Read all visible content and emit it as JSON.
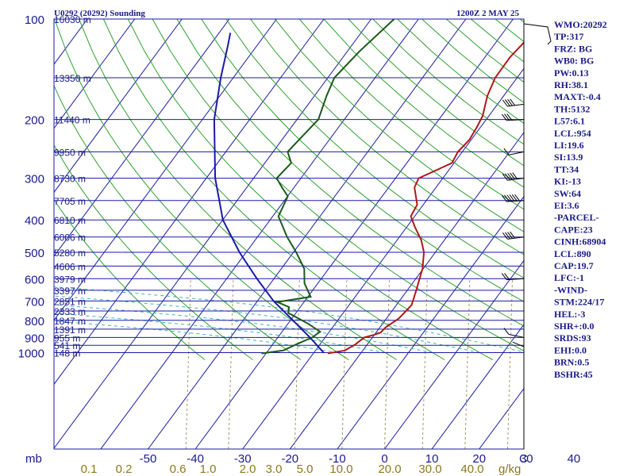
{
  "header": {
    "station": "U0292 (20292) Sounding",
    "time": "1200Z  2 MAY 25"
  },
  "chart_data": {
    "type": "skew-t log-p sounding",
    "x_axis_label": "C",
    "pressure_unit_label": "mb",
    "mixing_ratio_unit_label": "g/kg",
    "pressure_levels": [
      100,
      200,
      300,
      400,
      500,
      600,
      700,
      800,
      900,
      1000
    ],
    "height_levels": [
      {
        "p": 100,
        "label": "16030 m"
      },
      {
        "p": 150,
        "label": "13350 m"
      },
      {
        "p": 200,
        "label": "11440 m"
      },
      {
        "p": 250,
        "label": "9950 m"
      },
      {
        "p": 300,
        "label": "8730 m"
      },
      {
        "p": 350,
        "label": "7705 m"
      },
      {
        "p": 400,
        "label": "6810 m"
      },
      {
        "p": 450,
        "label": "6006 m"
      },
      {
        "p": 500,
        "label": "5280 m"
      },
      {
        "p": 550,
        "label": "4606 m"
      },
      {
        "p": 600,
        "label": "3979 m"
      },
      {
        "p": 650,
        "label": "3397 m"
      },
      {
        "p": 700,
        "label": "2851 m"
      },
      {
        "p": 750,
        "label": "2333 m"
      },
      {
        "p": 800,
        "label": "1847 m"
      },
      {
        "p": 850,
        "label": "1391 m"
      },
      {
        "p": 900,
        "label": "955 m"
      },
      {
        "p": 950,
        "label": "541 m"
      },
      {
        "p": 1000,
        "label": "148 m"
      }
    ],
    "temperature_ticks": [
      -50,
      -40,
      -30,
      -20,
      -10,
      0,
      10,
      20,
      30,
      40
    ],
    "mixing_ratio_labels": [
      "0.1",
      "0.2",
      "0.6",
      "1.0",
      "2.0",
      "3.0",
      "5.0",
      "10.0",
      "20.0",
      "30.0",
      "40.0"
    ],
    "series": [
      {
        "color": "#b01818",
        "points": [
          {
            "p": 1005,
            "t": -12
          },
          {
            "p": 985,
            "t": -9
          },
          {
            "p": 945,
            "t": -8
          },
          {
            "p": 900,
            "t": -7.5
          },
          {
            "p": 885,
            "t": -6
          },
          {
            "p": 870,
            "t": -5
          },
          {
            "p": 840,
            "t": -5
          },
          {
            "p": 790,
            "t": -4
          },
          {
            "p": 720,
            "t": -4
          },
          {
            "p": 650,
            "t": -6
          },
          {
            "p": 560,
            "t": -9
          },
          {
            "p": 500,
            "t": -12
          },
          {
            "p": 460,
            "t": -15
          },
          {
            "p": 420,
            "t": -19
          },
          {
            "p": 390,
            "t": -22
          },
          {
            "p": 360,
            "t": -23
          },
          {
            "p": 320,
            "t": -27
          },
          {
            "p": 300,
            "t": -28
          },
          {
            "p": 270,
            "t": -24
          },
          {
            "p": 250,
            "t": -25
          },
          {
            "p": 230,
            "t": -25
          },
          {
            "p": 210,
            "t": -26
          },
          {
            "p": 195,
            "t": -27
          },
          {
            "p": 170,
            "t": -30
          },
          {
            "p": 150,
            "t": -32
          },
          {
            "p": 130,
            "t": -33
          },
          {
            "p": 115,
            "t": -33
          },
          {
            "p": 100,
            "t": -35
          },
          {
            "p": 96,
            "t": -36
          }
        ]
      },
      {
        "color": "#1a5a1a",
        "points": [
          {
            "p": 1005,
            "t": -26
          },
          {
            "p": 985,
            "t": -22
          },
          {
            "p": 945,
            "t": -20.5
          },
          {
            "p": 900,
            "t": -18.5
          },
          {
            "p": 865,
            "t": -18
          },
          {
            "p": 820,
            "t": -22
          },
          {
            "p": 760,
            "t": -28.5
          },
          {
            "p": 730,
            "t": -29.5
          },
          {
            "p": 705,
            "t": -33
          },
          {
            "p": 680,
            "t": -27
          },
          {
            "p": 620,
            "t": -31
          },
          {
            "p": 560,
            "t": -34
          },
          {
            "p": 500,
            "t": -39
          },
          {
            "p": 450,
            "t": -44
          },
          {
            "p": 390,
            "t": -50
          },
          {
            "p": 340,
            "t": -52
          },
          {
            "p": 320,
            "t": -55
          },
          {
            "p": 300,
            "t": -58
          },
          {
            "p": 270,
            "t": -58
          },
          {
            "p": 250,
            "t": -61
          },
          {
            "p": 230,
            "t": -61
          },
          {
            "p": 200,
            "t": -61
          },
          {
            "p": 170,
            "t": -64
          },
          {
            "p": 150,
            "t": -66
          },
          {
            "p": 125,
            "t": -66
          },
          {
            "p": 96,
            "t": -65
          }
        ]
      },
      {
        "color": "#1a1aa8",
        "points": [
          {
            "p": 1000,
            "t": -13
          },
          {
            "p": 900,
            "t": -19
          },
          {
            "p": 800,
            "t": -26
          },
          {
            "p": 700,
            "t": -34
          },
          {
            "p": 600,
            "t": -42
          },
          {
            "p": 500,
            "t": -51
          },
          {
            "p": 400,
            "t": -61
          },
          {
            "p": 300,
            "t": -71
          },
          {
            "p": 200,
            "t": -83
          },
          {
            "p": 150,
            "t": -90
          },
          {
            "p": 120,
            "t": -95
          },
          {
            "p": 110,
            "t": -97
          }
        ]
      }
    ],
    "wind_barbs": [
      {
        "p": 180,
        "dir": 250,
        "kt": 40
      },
      {
        "p": 200,
        "dir": 260,
        "kt": 30
      },
      {
        "p": 250,
        "dir": 240,
        "kt": 15
      },
      {
        "p": 300,
        "dir": 250,
        "kt": 55
      },
      {
        "p": 350,
        "dir": 260,
        "kt": 60
      },
      {
        "p": 450,
        "dir": 250,
        "kt": 45
      },
      {
        "p": 600,
        "dir": 260,
        "kt": 20
      },
      {
        "p": 900,
        "dir": 300,
        "kt": 10
      },
      {
        "p": 960,
        "dir": 320,
        "kt": 5
      }
    ],
    "indices": [
      "WMO:20292",
      "TP:317",
      "FRZ: BG",
      "WB0: BG",
      "PW:0.13",
      "RH:38.1",
      "MAXT:-0.4",
      "TH:5132",
      "L57:6.1",
      "LCL:954",
      "LI:19.6",
      "SI:13.9",
      "TT:34",
      "KI:-13",
      "SW:64",
      "EI:3.6",
      "-PARCEL-",
      "CAPE:23",
      "CINH:68904",
      "LCL:890",
      "CAP:19.7",
      "LFC:-1",
      "-WIND-",
      "STM:224/17",
      "HEL:-3",
      "SHR+:0.0",
      "SRDS:93",
      "EHI:0.0",
      "BRN:0.5",
      "BSHR:45"
    ],
    "colors": {
      "isobar": "#1a1aa8",
      "isotherm": "#1a1aa8",
      "dry_adiabat": "#2fa02f",
      "moist_adiabat": "#3ab0c8",
      "mixing_ratio": "#a09868",
      "text": "#1a1a8c"
    }
  }
}
